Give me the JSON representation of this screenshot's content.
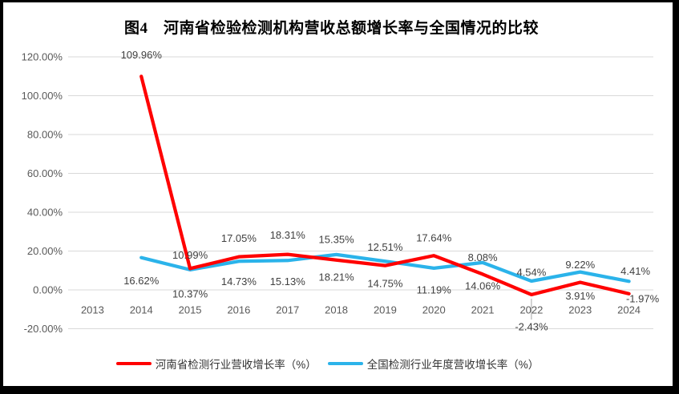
{
  "chart": {
    "title": "图4　河南省检验检测机构营收总额增长率与全国情况的比较"
  },
  "chart_data": {
    "type": "line",
    "title": "图4　河南省检验检测机构营收总额增长率与全国情况的比较",
    "categories": [
      "2013",
      "2014",
      "2015",
      "2016",
      "2017",
      "2018",
      "2019",
      "2020",
      "2021",
      "2022",
      "2023",
      "2024"
    ],
    "series": [
      {
        "name": "河南省检测行业营收增长率（%）",
        "color": "#FF0000",
        "values": [
          null,
          109.96,
          10.99,
          17.05,
          18.31,
          15.35,
          12.51,
          17.64,
          8.08,
          -2.43,
          3.91,
          -1.97
        ],
        "data_labels": [
          null,
          "109.96%",
          "10.99%",
          "17.05%",
          "18.31%",
          "15.35%",
          "12.51%",
          "17.64%",
          "8.08%",
          "-2.43%",
          "3.91%",
          "-1.97%"
        ],
        "label_offsets": [
          null,
          [
            0,
            -27
          ],
          [
            0,
            -17
          ],
          [
            0,
            -23
          ],
          [
            0,
            -24
          ],
          [
            0,
            -26
          ],
          [
            0,
            -23
          ],
          [
            0,
            -22
          ],
          [
            0,
            -21
          ],
          [
            0,
            40
          ],
          [
            0,
            17
          ],
          [
            17,
            6
          ]
        ]
      },
      {
        "name": "全国检测行业年度营收增长率（%）",
        "color": "#2BB3EA",
        "values": [
          null,
          16.62,
          10.37,
          14.73,
          15.13,
          18.21,
          14.75,
          11.19,
          14.06,
          4.54,
          9.22,
          4.41
        ],
        "data_labels": [
          null,
          "16.62%",
          "10.37%",
          "14.73%",
          "15.13%",
          "18.21%",
          "14.75%",
          "11.19%",
          "14.06%",
          "4.54%",
          "9.22%",
          "4.41%"
        ],
        "label_offsets": [
          null,
          [
            0,
            29
          ],
          [
            0,
            30
          ],
          [
            0,
            25
          ],
          [
            0,
            26
          ],
          [
            0,
            28
          ],
          [
            0,
            28
          ],
          [
            0,
            27
          ],
          [
            0,
            29
          ],
          [
            0,
            -11
          ],
          [
            0,
            -9
          ],
          [
            8,
            -13
          ]
        ]
      }
    ],
    "y_axis": {
      "min": -20,
      "max": 120,
      "step": 20,
      "tick_labels": [
        "120.00%",
        "100.00%",
        "80.00%",
        "60.00%",
        "40.00%",
        "20.00%",
        "0.00%",
        "-20.00%"
      ]
    },
    "x_axis": {
      "tick_labels": [
        "2013",
        "2014",
        "2015",
        "2016",
        "2017",
        "2018",
        "2019",
        "2020",
        "2021",
        "2022",
        "2023",
        "2024"
      ]
    },
    "grid": true,
    "legend_position": "bottom",
    "colors": {
      "grid": "#D9D9D9",
      "axis_text": "#595959",
      "data_label_text": "#404040",
      "leader_line": "#A6A6A6",
      "frame_border": "#000000",
      "background": "#FFFFFF"
    },
    "annotations": {
      "leader_line": {
        "x_index": 9,
        "y_from": 373,
        "y_to": 399
      }
    }
  },
  "legend": {
    "items": [
      {
        "label": "河南省检测行业营收增长率（%）"
      },
      {
        "label": "全国检测行业年度营收增长率（%）"
      }
    ]
  }
}
